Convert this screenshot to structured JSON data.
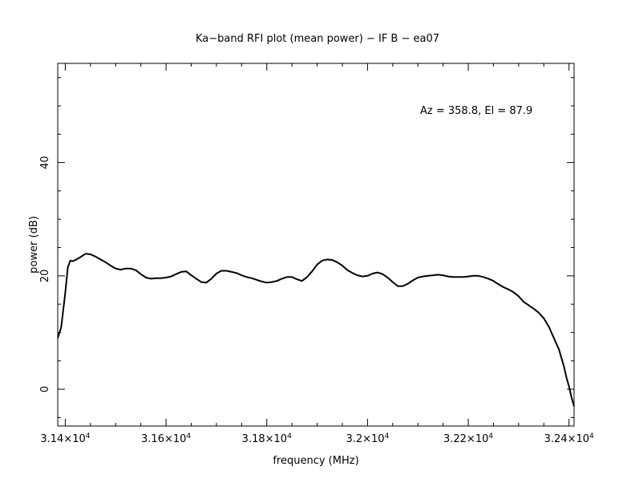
{
  "chart_data": {
    "type": "line",
    "title": "Ka−band RFI plot (mean power) − IF B − ea07",
    "xlabel": "frequency (MHz)",
    "ylabel": "power (dB)",
    "annotation": "Az = 358.8, El = 87.9",
    "xlim": [
      31385,
      32410
    ],
    "ylim": [
      -6.5,
      57.5
    ],
    "x_ticks": [
      {
        "value": 31400,
        "label": "3.14×10",
        "exp": "4"
      },
      {
        "value": 31600,
        "label": "3.16×10",
        "exp": "4"
      },
      {
        "value": 31800,
        "label": "3.18×10",
        "exp": "4"
      },
      {
        "value": 32000,
        "label": "3.2×10",
        "exp": "4"
      },
      {
        "value": 32200,
        "label": "3.22×10",
        "exp": "4"
      },
      {
        "value": 32400,
        "label": "3.24×10",
        "exp": "4"
      }
    ],
    "y_ticks": [
      {
        "value": 0,
        "label": "0"
      },
      {
        "value": 20,
        "label": "20"
      },
      {
        "value": 40,
        "label": "40"
      }
    ],
    "grid": false,
    "series": [
      {
        "color": "#000000",
        "x": [
          31385,
          31392,
          31400,
          31405,
          31410,
          31415,
          31420,
          31430,
          31440,
          31450,
          31460,
          31470,
          31480,
          31490,
          31500,
          31510,
          31520,
          31530,
          31540,
          31550,
          31560,
          31570,
          31580,
          31590,
          31600,
          31610,
          31620,
          31630,
          31640,
          31650,
          31660,
          31670,
          31680,
          31690,
          31700,
          31710,
          31720,
          31730,
          31740,
          31750,
          31760,
          31770,
          31780,
          31790,
          31800,
          31810,
          31820,
          31830,
          31840,
          31850,
          31860,
          31870,
          31880,
          31890,
          31900,
          31910,
          31920,
          31930,
          31940,
          31950,
          31960,
          31970,
          31980,
          31990,
          32000,
          32010,
          32020,
          32030,
          32040,
          32050,
          32060,
          32070,
          32080,
          32090,
          32100,
          32110,
          32120,
          32130,
          32140,
          32150,
          32160,
          32170,
          32180,
          32190,
          32200,
          32210,
          32220,
          32230,
          32240,
          32250,
          32260,
          32270,
          32280,
          32290,
          32300,
          32310,
          32320,
          32330,
          32340,
          32350,
          32360,
          32370,
          32380,
          32390,
          32395,
          32400,
          32405,
          32410
        ],
        "y": [
          9,
          11,
          17,
          21.5,
          22.7,
          22.6,
          22.8,
          23.3,
          23.9,
          23.8,
          23.4,
          22.9,
          22.4,
          21.8,
          21.3,
          21.1,
          21.3,
          21.3,
          21,
          20.3,
          19.7,
          19.5,
          19.6,
          19.6,
          19.7,
          19.9,
          20.3,
          20.7,
          20.8,
          20.1,
          19.5,
          18.9,
          18.8,
          19.5,
          20.4,
          20.9,
          20.9,
          20.7,
          20.5,
          20.1,
          19.8,
          19.6,
          19.3,
          19,
          18.8,
          18.9,
          19.1,
          19.5,
          19.8,
          19.8,
          19.4,
          19.1,
          19.8,
          20.8,
          22,
          22.7,
          22.9,
          22.8,
          22.4,
          21.8,
          21,
          20.5,
          20.1,
          19.9,
          20,
          20.4,
          20.6,
          20.3,
          19.7,
          18.9,
          18.2,
          18.2,
          18.6,
          19.2,
          19.7,
          19.9,
          20,
          20.1,
          20.2,
          20.1,
          19.9,
          19.8,
          19.8,
          19.8,
          19.9,
          20,
          20,
          19.8,
          19.5,
          19.1,
          18.5,
          18,
          17.6,
          17.1,
          16.4,
          15.4,
          14.8,
          14.2,
          13.5,
          12.5,
          11,
          9,
          7,
          4,
          2,
          0.5,
          -1.5,
          -3
        ]
      }
    ]
  }
}
